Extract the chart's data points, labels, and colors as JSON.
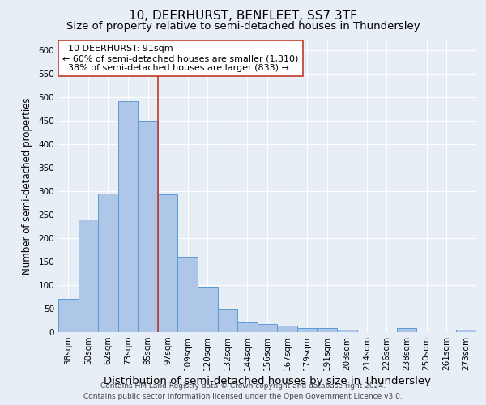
{
  "title": "10, DEERHURST, BENFLEET, SS7 3TF",
  "subtitle": "Size of property relative to semi-detached houses in Thundersley",
  "xlabel": "Distribution of semi-detached houses by size in Thundersley",
  "ylabel": "Number of semi-detached properties",
  "footer_line1": "Contains HM Land Registry data © Crown copyright and database right 2024.",
  "footer_line2": "Contains public sector information licensed under the Open Government Licence v3.0.",
  "categories": [
    "38sqm",
    "50sqm",
    "62sqm",
    "73sqm",
    "85sqm",
    "97sqm",
    "109sqm",
    "120sqm",
    "132sqm",
    "144sqm",
    "156sqm",
    "167sqm",
    "179sqm",
    "191sqm",
    "203sqm",
    "214sqm",
    "226sqm",
    "238sqm",
    "250sqm",
    "261sqm",
    "273sqm"
  ],
  "values": [
    70,
    240,
    295,
    490,
    450,
    293,
    160,
    97,
    48,
    20,
    18,
    14,
    9,
    9,
    5,
    0,
    0,
    8,
    0,
    0,
    5
  ],
  "bar_color": "#aec6e8",
  "bar_edge_color": "#5b9bd5",
  "property_label": "10 DEERHURST: 91sqm",
  "pct_smaller": 60,
  "pct_larger": 38,
  "n_smaller": 1310,
  "n_larger": 833,
  "vline_x_index": 4.5,
  "vline_color": "#c0392b",
  "annotation_box_color": "#ffffff",
  "annotation_box_edge": "#c0392b",
  "ylim": [
    0,
    620
  ],
  "yticks": [
    0,
    50,
    100,
    150,
    200,
    250,
    300,
    350,
    400,
    450,
    500,
    550,
    600
  ],
  "background_color": "#e8eef5",
  "plot_bg_color": "#e8eef5",
  "grid_color": "#ffffff",
  "title_fontsize": 11,
  "subtitle_fontsize": 9.5,
  "xlabel_fontsize": 9.5,
  "ylabel_fontsize": 8.5,
  "tick_fontsize": 7.5,
  "annotation_fontsize": 8,
  "footer_fontsize": 6.5
}
